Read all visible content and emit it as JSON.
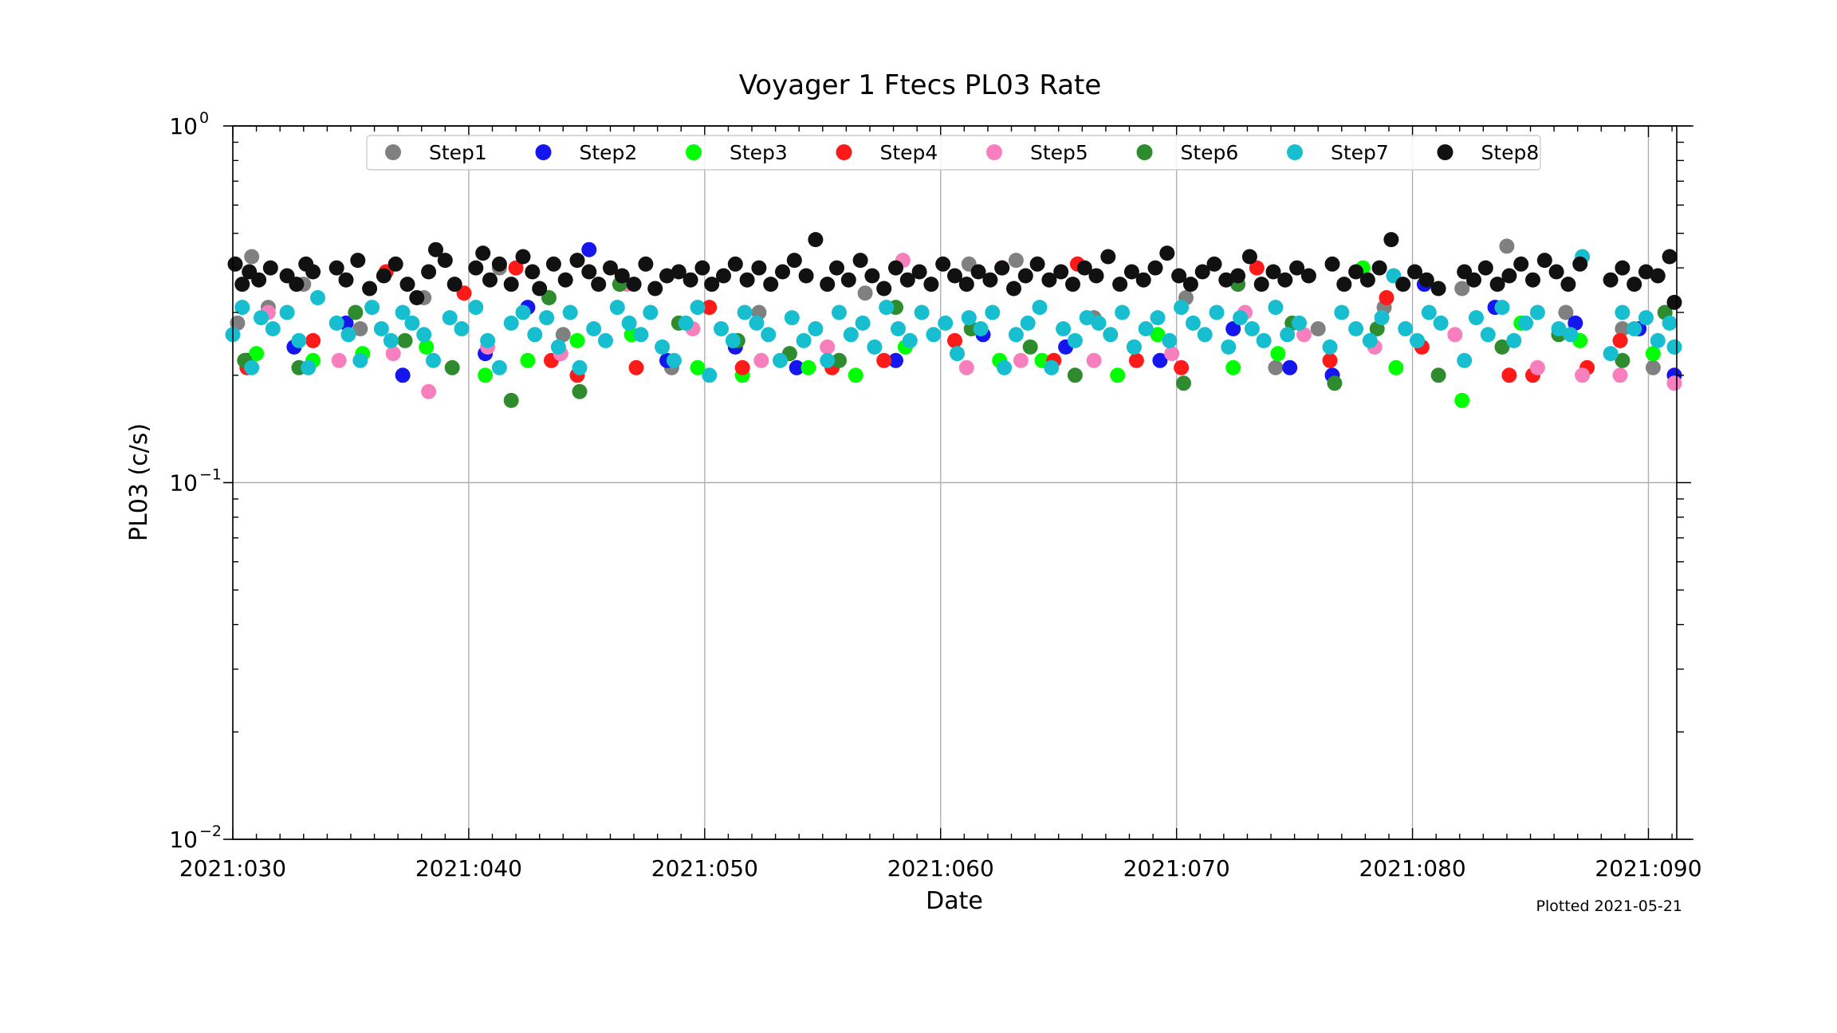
{
  "chart_data": {
    "type": "scatter",
    "title": "Voyager 1 Ftecs PL03 Rate",
    "xlabel": "Date",
    "ylabel": "PL03 (c/s)",
    "footnote": "Plotted 2021-05-21",
    "x_scale": "linear",
    "y_scale": "log",
    "xlim": [
      30,
      91.2
    ],
    "ylim": [
      0.01,
      1.0
    ],
    "xticks": [
      30,
      40,
      50,
      60,
      70,
      80,
      90
    ],
    "xtick_labels": [
      "2021:030",
      "2021:040",
      "2021:050",
      "2021:060",
      "2021:070",
      "2021:080",
      "2021:090"
    ],
    "yticks": [
      0.01,
      0.1,
      1.0
    ],
    "ytick_labels": [
      {
        "base": "10",
        "exp": "−2"
      },
      {
        "base": "10",
        "exp": "−1"
      },
      {
        "base": "10",
        "exp": "0"
      }
    ],
    "grid": true,
    "legend_position": "top-center",
    "series": [
      {
        "name": "Step1",
        "color": "#808080",
        "x": [
          30.2,
          30.8,
          31.5,
          33.0,
          35.4,
          38.1,
          41.3,
          44.0,
          48.6,
          52.3,
          56.8,
          61.2,
          63.2,
          66.5,
          70.4,
          74.2,
          76.0,
          78.8,
          82.1,
          84.0,
          86.5,
          88.9,
          90.2
        ],
        "values": [
          0.28,
          0.43,
          0.31,
          0.36,
          0.27,
          0.33,
          0.4,
          0.26,
          0.21,
          0.3,
          0.34,
          0.41,
          0.42,
          0.29,
          0.33,
          0.21,
          0.27,
          0.31,
          0.35,
          0.46,
          0.3,
          0.27,
          0.21
        ]
      },
      {
        "name": "Step2",
        "color": "#1515ee",
        "x": [
          30.6,
          32.6,
          34.8,
          37.2,
          40.7,
          42.5,
          45.1,
          48.4,
          51.3,
          53.9,
          58.1,
          61.8,
          65.3,
          69.3,
          72.4,
          74.8,
          76.6,
          80.5,
          83.5,
          86.9,
          89.6,
          91.1
        ],
        "values": [
          0.22,
          0.24,
          0.28,
          0.2,
          0.23,
          0.31,
          0.45,
          0.22,
          0.24,
          0.21,
          0.22,
          0.26,
          0.24,
          0.22,
          0.27,
          0.21,
          0.2,
          0.36,
          0.31,
          0.28,
          0.27,
          0.2
        ]
      },
      {
        "name": "Step3",
        "color": "#00ff00",
        "x": [
          31.0,
          33.4,
          35.5,
          38.2,
          40.7,
          42.5,
          44.6,
          46.9,
          49.7,
          51.6,
          54.4,
          56.4,
          58.5,
          62.5,
          64.3,
          67.5,
          69.2,
          72.4,
          74.3,
          77.9,
          79.3,
          82.1,
          84.6,
          87.1,
          90.2
        ],
        "values": [
          0.23,
          0.22,
          0.23,
          0.24,
          0.2,
          0.22,
          0.25,
          0.26,
          0.21,
          0.2,
          0.21,
          0.2,
          0.24,
          0.22,
          0.22,
          0.2,
          0.26,
          0.21,
          0.23,
          0.4,
          0.21,
          0.17,
          0.28,
          0.25,
          0.23
        ]
      },
      {
        "name": "Step4",
        "color": "#ff1a1a",
        "x": [
          30.6,
          33.4,
          36.5,
          39.8,
          42.0,
          43.5,
          44.6,
          47.1,
          50.2,
          51.6,
          55.4,
          57.6,
          60.6,
          62.6,
          64.8,
          65.8,
          68.3,
          70.2,
          73.4,
          76.5,
          78.9,
          80.4,
          84.1,
          85.1,
          87.4,
          88.8
        ],
        "values": [
          0.21,
          0.25,
          0.39,
          0.34,
          0.4,
          0.22,
          0.2,
          0.21,
          0.31,
          0.21,
          0.21,
          0.22,
          0.25,
          0.4,
          0.22,
          0.41,
          0.22,
          0.21,
          0.4,
          0.22,
          0.33,
          0.24,
          0.2,
          0.2,
          0.21,
          0.25
        ]
      },
      {
        "name": "Step5",
        "color": "#f77fbe",
        "x": [
          31.5,
          34.5,
          36.8,
          38.3,
          40.8,
          43.9,
          46.7,
          49.5,
          52.4,
          55.2,
          58.4,
          61.1,
          63.4,
          66.5,
          69.8,
          72.9,
          75.4,
          78.4,
          81.8,
          85.3,
          87.2,
          88.8,
          91.1
        ],
        "values": [
          0.3,
          0.22,
          0.23,
          0.18,
          0.24,
          0.23,
          0.36,
          0.27,
          0.22,
          0.24,
          0.42,
          0.21,
          0.22,
          0.22,
          0.23,
          0.3,
          0.26,
          0.24,
          0.26,
          0.21,
          0.2,
          0.2,
          0.19
        ]
      },
      {
        "name": "Step6",
        "color": "#2e8b2e",
        "x": [
          30.5,
          32.8,
          35.2,
          37.3,
          39.3,
          41.8,
          43.4,
          44.7,
          46.4,
          48.9,
          51.4,
          53.6,
          55.7,
          58.1,
          61.3,
          63.8,
          65.7,
          68.2,
          70.3,
          72.6,
          74.9,
          76.7,
          78.5,
          81.1,
          83.8,
          86.2,
          88.9,
          90.7
        ],
        "values": [
          0.22,
          0.21,
          0.3,
          0.25,
          0.21,
          0.17,
          0.33,
          0.18,
          0.36,
          0.28,
          0.25,
          0.23,
          0.22,
          0.31,
          0.27,
          0.24,
          0.2,
          0.24,
          0.19,
          0.36,
          0.28,
          0.19,
          0.27,
          0.2,
          0.24,
          0.26,
          0.22,
          0.3
        ]
      },
      {
        "name": "Step7",
        "color": "#17becf",
        "x": [
          30.0,
          30.4,
          30.8,
          31.2,
          31.7,
          32.3,
          32.8,
          33.2,
          33.6,
          34.4,
          34.9,
          35.4,
          35.9,
          36.3,
          36.7,
          37.2,
          37.6,
          38.1,
          38.5,
          39.2,
          39.7,
          40.3,
          40.8,
          41.3,
          41.8,
          42.3,
          42.8,
          43.3,
          43.8,
          44.3,
          44.7,
          45.3,
          45.8,
          46.3,
          46.8,
          47.3,
          47.7,
          48.2,
          48.7,
          49.2,
          49.7,
          50.2,
          50.7,
          51.2,
          51.7,
          52.2,
          52.7,
          53.2,
          53.7,
          54.2,
          54.7,
          55.2,
          55.7,
          56.2,
          56.7,
          57.2,
          57.7,
          58.2,
          58.7,
          59.2,
          59.7,
          60.2,
          60.7,
          61.2,
          61.7,
          62.2,
          62.7,
          63.2,
          63.7,
          64.2,
          64.7,
          65.2,
          65.7,
          66.2,
          66.7,
          67.2,
          67.7,
          68.2,
          68.7,
          69.2,
          69.7,
          70.2,
          70.7,
          71.2,
          71.7,
          72.2,
          72.7,
          73.2,
          73.7,
          74.2,
          74.7,
          75.2,
          76.5,
          77.0,
          77.6,
          78.2,
          78.7,
          79.2,
          79.7,
          80.2,
          80.7,
          81.2,
          82.2,
          82.7,
          83.2,
          83.8,
          84.3,
          84.8,
          85.3,
          86.2,
          86.7,
          87.2,
          88.4,
          88.9,
          89.4,
          89.9,
          90.4,
          90.9,
          91.1
        ],
        "values": [
          0.26,
          0.31,
          0.21,
          0.29,
          0.27,
          0.3,
          0.25,
          0.21,
          0.33,
          0.28,
          0.26,
          0.22,
          0.31,
          0.27,
          0.25,
          0.3,
          0.28,
          0.26,
          0.22,
          0.29,
          0.27,
          0.31,
          0.25,
          0.21,
          0.28,
          0.3,
          0.26,
          0.29,
          0.24,
          0.3,
          0.21,
          0.27,
          0.25,
          0.31,
          0.28,
          0.26,
          0.3,
          0.24,
          0.22,
          0.28,
          0.31,
          0.2,
          0.27,
          0.25,
          0.3,
          0.28,
          0.26,
          0.22,
          0.29,
          0.25,
          0.27,
          0.22,
          0.3,
          0.26,
          0.28,
          0.24,
          0.31,
          0.27,
          0.25,
          0.3,
          0.26,
          0.28,
          0.23,
          0.29,
          0.27,
          0.3,
          0.21,
          0.26,
          0.28,
          0.31,
          0.21,
          0.27,
          0.25,
          0.29,
          0.28,
          0.26,
          0.3,
          0.24,
          0.27,
          0.29,
          0.25,
          0.31,
          0.28,
          0.26,
          0.3,
          0.24,
          0.29,
          0.27,
          0.25,
          0.31,
          0.26,
          0.28,
          0.24,
          0.3,
          0.27,
          0.25,
          0.29,
          0.38,
          0.27,
          0.25,
          0.3,
          0.28,
          0.22,
          0.29,
          0.26,
          0.31,
          0.25,
          0.28,
          0.3,
          0.27,
          0.26,
          0.43,
          0.23,
          0.3,
          0.27,
          0.29,
          0.25,
          0.28,
          0.24
        ]
      },
      {
        "name": "Step8",
        "color": "#111111",
        "x": [
          30.1,
          30.4,
          30.7,
          31.1,
          31.6,
          32.3,
          32.7,
          33.1,
          33.4,
          34.4,
          34.8,
          35.3,
          35.8,
          36.4,
          36.9,
          37.4,
          37.8,
          38.3,
          38.6,
          39.0,
          39.4,
          40.3,
          40.6,
          40.9,
          41.3,
          41.8,
          42.3,
          42.7,
          43.0,
          43.6,
          44.1,
          44.6,
          45.1,
          45.5,
          46.0,
          46.5,
          47.0,
          47.5,
          47.9,
          48.4,
          48.9,
          49.4,
          49.9,
          50.3,
          50.8,
          51.3,
          51.8,
          52.3,
          52.8,
          53.3,
          53.8,
          54.3,
          54.7,
          55.2,
          55.6,
          56.1,
          56.6,
          57.1,
          57.6,
          58.1,
          58.6,
          59.1,
          59.6,
          60.1,
          60.6,
          61.1,
          61.6,
          62.1,
          62.6,
          63.1,
          63.6,
          64.1,
          64.6,
          65.1,
          65.6,
          66.1,
          66.6,
          67.1,
          67.6,
          68.1,
          68.6,
          69.1,
          69.6,
          70.1,
          70.6,
          71.1,
          71.6,
          72.1,
          72.6,
          73.1,
          73.6,
          74.1,
          74.6,
          75.1,
          75.6,
          76.6,
          77.1,
          77.6,
          78.1,
          78.6,
          79.1,
          79.6,
          80.1,
          80.6,
          81.1,
          82.2,
          82.6,
          83.1,
          83.6,
          84.1,
          84.6,
          85.1,
          85.6,
          86.1,
          86.6,
          87.1,
          88.4,
          88.9,
          89.4,
          89.9,
          90.4,
          90.9,
          91.1
        ],
        "values": [
          0.41,
          0.36,
          0.39,
          0.37,
          0.4,
          0.38,
          0.36,
          0.41,
          0.39,
          0.4,
          0.37,
          0.42,
          0.35,
          0.38,
          0.41,
          0.36,
          0.33,
          0.39,
          0.45,
          0.42,
          0.36,
          0.4,
          0.44,
          0.37,
          0.41,
          0.36,
          0.43,
          0.39,
          0.35,
          0.41,
          0.37,
          0.42,
          0.39,
          0.36,
          0.4,
          0.38,
          0.36,
          0.41,
          0.35,
          0.38,
          0.39,
          0.37,
          0.4,
          0.36,
          0.38,
          0.41,
          0.37,
          0.4,
          0.36,
          0.39,
          0.42,
          0.38,
          0.48,
          0.36,
          0.4,
          0.37,
          0.42,
          0.38,
          0.35,
          0.4,
          0.37,
          0.39,
          0.36,
          0.41,
          0.38,
          0.36,
          0.39,
          0.37,
          0.4,
          0.35,
          0.38,
          0.41,
          0.37,
          0.39,
          0.36,
          0.4,
          0.38,
          0.43,
          0.36,
          0.39,
          0.37,
          0.4,
          0.44,
          0.38,
          0.36,
          0.39,
          0.41,
          0.37,
          0.38,
          0.43,
          0.36,
          0.39,
          0.37,
          0.4,
          0.38,
          0.41,
          0.36,
          0.39,
          0.37,
          0.4,
          0.48,
          0.36,
          0.39,
          0.37,
          0.35,
          0.39,
          0.37,
          0.4,
          0.36,
          0.38,
          0.41,
          0.37,
          0.42,
          0.39,
          0.36,
          0.41,
          0.37,
          0.4,
          0.36,
          0.39,
          0.38,
          0.43,
          0.32
        ]
      }
    ]
  }
}
